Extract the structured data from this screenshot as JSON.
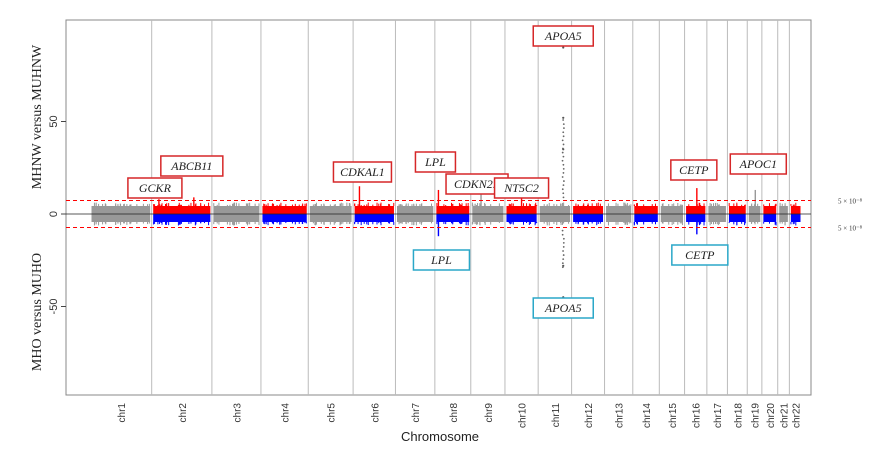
{
  "chart_data": {
    "type": "scatter",
    "subtype": "mirrored manhattan plot",
    "xlabel": "Chromosome",
    "ylabel_top": "MHNW versus MUHNW",
    "ylabel_bottom": "MHO versus MUHO",
    "yticks": [
      "50",
      "0",
      "-50"
    ],
    "ylim": [
      -100,
      100
    ],
    "threshold_label": "5 × 10⁻⁸",
    "threshold_value": 7.3,
    "grid": true,
    "colors": {
      "top_odd": "#999999",
      "top_even": "#ff0000",
      "bottom_odd": "#999999",
      "bottom_even": "#0000ff",
      "threshold": "#ff0000",
      "top_label_border": "#d62728",
      "bottom_label_border": "#2aa7c8"
    },
    "chromosomes": [
      "chr1",
      "chr2",
      "chr3",
      "chr4",
      "chr5",
      "chr6",
      "chr7",
      "chr8",
      "chr9",
      "chr10",
      "chr11",
      "chr12",
      "chr13",
      "chr14",
      "chr15",
      "chr16",
      "chr17",
      "chr18",
      "chr19",
      "chr20",
      "chr21",
      "chr22"
    ],
    "peaks_top": [
      {
        "chr": "chr2",
        "rel": 0.12,
        "value": 8
      },
      {
        "chr": "chr2",
        "rel": 0.7,
        "value": 9
      },
      {
        "chr": "chr6",
        "rel": 0.15,
        "value": 15
      },
      {
        "chr": "chr8",
        "rel": 0.1,
        "value": 13
      },
      {
        "chr": "chr9",
        "rel": 0.3,
        "value": 12
      },
      {
        "chr": "chr10",
        "rel": 0.5,
        "value": 9
      },
      {
        "chr": "chr11",
        "rel": 0.75,
        "value": 90
      },
      {
        "chr": "chr11",
        "rel": 0.75,
        "value": 52
      },
      {
        "chr": "chr11",
        "rel": 0.75,
        "value": 35
      },
      {
        "chr": "chr16",
        "rel": 0.55,
        "value": 14
      },
      {
        "chr": "chr19",
        "rel": 0.55,
        "value": 13
      }
    ],
    "peaks_bottom": [
      {
        "chr": "chr8",
        "rel": 0.1,
        "value": 12
      },
      {
        "chr": "chr11",
        "rel": 0.75,
        "value": 45
      },
      {
        "chr": "chr11",
        "rel": 0.75,
        "value": 28
      },
      {
        "chr": "chr16",
        "rel": 0.55,
        "value": 11
      }
    ],
    "labels_top": [
      {
        "text": "GCKR",
        "chr": "chr2",
        "rel": 0.12
      },
      {
        "text": "ABCB11",
        "chr": "chr2",
        "rel": 0.7
      },
      {
        "text": "CDKAL1",
        "chr": "chr6",
        "rel": 0.15
      },
      {
        "text": "LPL",
        "chr": "chr8",
        "rel": 0.1
      },
      {
        "text": "CDKN2B",
        "chr": "chr9",
        "rel": 0.3
      },
      {
        "text": "NT5C2",
        "chr": "chr10",
        "rel": 0.5
      },
      {
        "text": "APOA5",
        "chr": "chr11",
        "rel": 0.75
      },
      {
        "text": "CETP",
        "chr": "chr16",
        "rel": 0.55
      },
      {
        "text": "APOC1",
        "chr": "chr19",
        "rel": 0.55
      }
    ],
    "labels_bottom": [
      {
        "text": "LPL",
        "chr": "chr8",
        "rel": 0.1
      },
      {
        "text": "APOA5",
        "chr": "chr11",
        "rel": 0.75
      },
      {
        "text": "CETP",
        "chr": "chr16",
        "rel": 0.55
      }
    ]
  }
}
